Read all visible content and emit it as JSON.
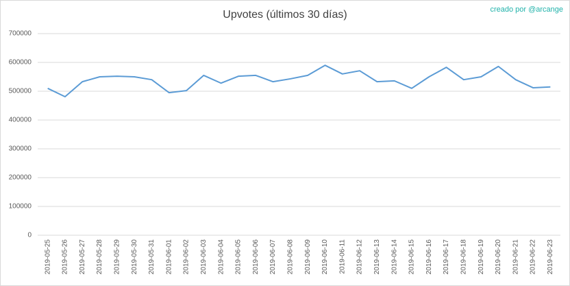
{
  "chart_data": {
    "type": "line",
    "title": "Upvotes (últimos 30 días)",
    "annotation": "creado por @arcange",
    "annotation_color": "#20b2aa",
    "categories": [
      "2019-05-25",
      "2019-05-26",
      "2019-05-27",
      "2019-05-28",
      "2019-05-29",
      "2019-05-30",
      "2019-05-31",
      "2019-06-01",
      "2019-06-02",
      "2019-06-03",
      "2019-06-04",
      "2019-06-05",
      "2019-06-06",
      "2019-06-07",
      "2019-06-08",
      "2019-06-09",
      "2019-06-10",
      "2019-06-11",
      "2019-06-12",
      "2019-06-13",
      "2019-06-14",
      "2019-06-15",
      "2019-06-16",
      "2019-06-17",
      "2019-06-18",
      "2019-06-19",
      "2019-06-20",
      "2019-06-21",
      "2019-06-22",
      "2019-06-23"
    ],
    "series": [
      {
        "name": "Upvotes",
        "color": "#5b9bd5",
        "values": [
          510000,
          481000,
          533000,
          550000,
          552000,
          550000,
          540000,
          495000,
          502000,
          555000,
          528000,
          552000,
          555000,
          533000,
          543000,
          555000,
          590000,
          560000,
          571000,
          533000,
          536000,
          510000,
          550000,
          583000,
          540000,
          550000,
          586000,
          540000,
          512000,
          515000
        ]
      }
    ],
    "ylim": [
      0,
      700000
    ],
    "yticks": [
      0,
      100000,
      200000,
      300000,
      400000,
      500000,
      600000,
      700000
    ],
    "grid": true
  }
}
